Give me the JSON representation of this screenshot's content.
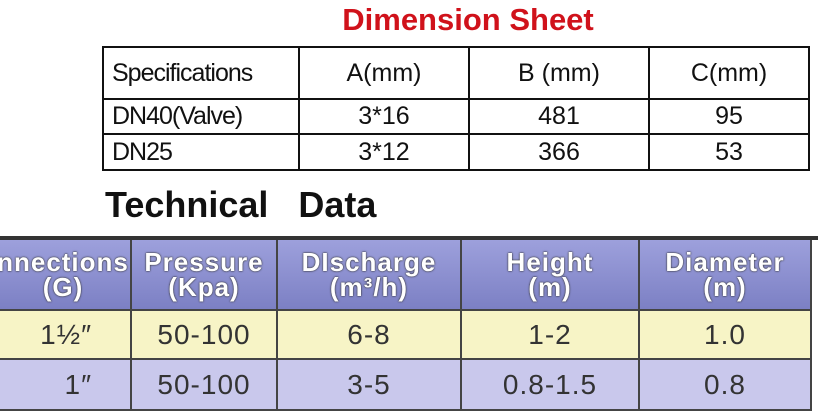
{
  "dimension_sheet": {
    "title": "Dimension Sheet",
    "header": [
      "Specifications",
      "A(mm)",
      "B (mm)",
      "C(mm)"
    ],
    "rows": [
      [
        "DN40(Valve)",
        "3*16",
        "481",
        "95"
      ],
      [
        "DN25",
        "3*12",
        "366",
        "53"
      ]
    ]
  },
  "technical_data": {
    "title": "Technical   Data",
    "header": [
      [
        "nnections",
        "(G)"
      ],
      [
        "Pressure",
        "(Kpa)"
      ],
      [
        "DIscharge",
        "(m³/h)"
      ],
      [
        "Height",
        "(m)"
      ],
      [
        "Diameter",
        "(m)"
      ]
    ],
    "rows": [
      [
        "1½″",
        "50-100",
        "6-8",
        "1-2",
        "1.0"
      ],
      [
        "1″",
        "50-100",
        "3-5",
        "0.8-1.5",
        "0.8"
      ]
    ]
  }
}
